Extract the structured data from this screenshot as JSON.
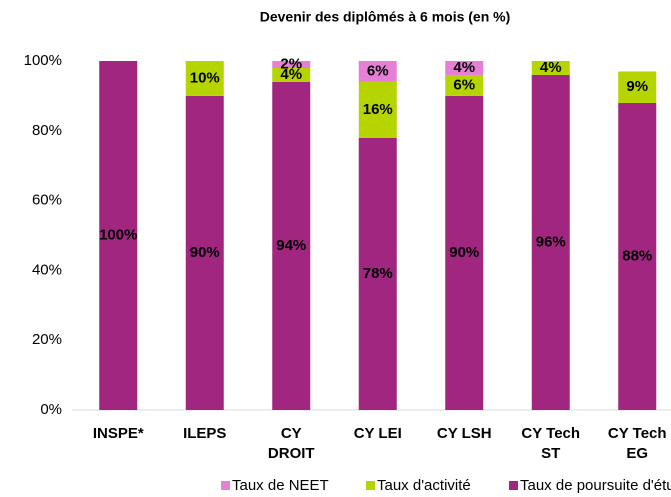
{
  "chart_data": {
    "type": "stacked_bar",
    "title": "Devenir des diplômés à 6 mois (en %)",
    "categories": [
      "INSPE*",
      "ILEPS",
      "CY DROIT",
      "CY LEI",
      "CY LSH",
      "CY Tech ST",
      "CY Tech EG"
    ],
    "series": [
      {
        "name": "Taux de poursuite d'études",
        "color": "#a0267f",
        "values": [
          100,
          90,
          94,
          78,
          90,
          96,
          88
        ],
        "value_labels": [
          "100%",
          "90%",
          "94%",
          "78%",
          "90%",
          "96%",
          "88%"
        ]
      },
      {
        "name": "Taux d'activité",
        "color": "#b5d400",
        "values": [
          null,
          10,
          4,
          16,
          6,
          4,
          9
        ],
        "value_labels": [
          null,
          "10%",
          "4%",
          "16%",
          "6%",
          "4%",
          "9%"
        ]
      },
      {
        "name": "Taux de NEET",
        "color": "#e680d6",
        "values": [
          null,
          null,
          2,
          6,
          4,
          null,
          null
        ],
        "value_labels": [
          null,
          null,
          "2%",
          "6%",
          "4%",
          null,
          null
        ]
      }
    ],
    "ylim": [
      0,
      100
    ],
    "yticks": [
      {
        "value": 0,
        "label": "0%"
      },
      {
        "value": 20,
        "label": "20%"
      },
      {
        "value": 40,
        "label": "40%"
      },
      {
        "value": 60,
        "label": "60%"
      },
      {
        "value": 80,
        "label": "80%"
      },
      {
        "value": 100,
        "label": "100%"
      }
    ],
    "grid": false,
    "legend": "bottom"
  }
}
